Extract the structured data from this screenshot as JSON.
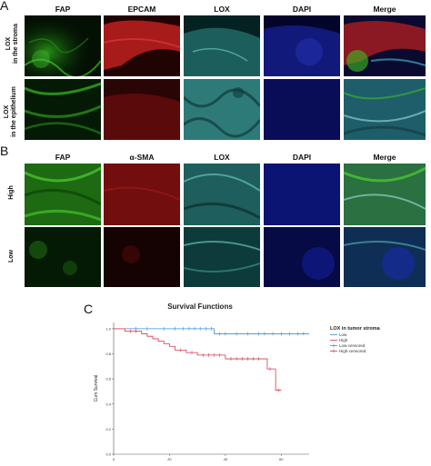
{
  "panel_a": {
    "letter": "A",
    "columns": [
      "FAP",
      "EPCAM",
      "LOX",
      "DAPI",
      "Merge"
    ],
    "rows": [
      {
        "line1": "LOX",
        "line2": "in the stroma"
      },
      {
        "line1": "LOX",
        "line2": "in the epithelium"
      }
    ]
  },
  "panel_b": {
    "letter": "B",
    "columns": [
      "FAP",
      "α-SMA",
      "LOX",
      "DAPI",
      "Merge"
    ],
    "rows": [
      {
        "line1": "High"
      },
      {
        "line1": "Low"
      }
    ]
  },
  "panel_c": {
    "letter": "C"
  },
  "colors": {
    "fap": "#2e8b1e",
    "epcam": "#b81818",
    "lox": "#3aa7a0",
    "dapi": "#1a24a0",
    "sma": "#8a1212",
    "low_line": "#3a8fd6",
    "high_line": "#d43a4a"
  },
  "chart_data": {
    "type": "line",
    "title": "Survival Functions",
    "xlabel": "",
    "ylabel": "Cum Survival",
    "xlim": [
      0,
      70
    ],
    "ylim": [
      0.0,
      1.05
    ],
    "xticks": [
      "0",
      "20",
      "40",
      "60"
    ],
    "xtick_values": [
      0,
      20,
      40,
      60
    ],
    "yticks": [
      "0.0",
      "0.2",
      "0.4",
      "0.6",
      "0.8",
      "1.0"
    ],
    "ytick_values": [
      0.0,
      0.2,
      0.4,
      0.6,
      0.8,
      1.0
    ],
    "legend_title": "LOX in tumor stroma",
    "legend": [
      "Low",
      "High",
      "Low-censored",
      "High-censored"
    ],
    "legend_position": "right",
    "series": [
      {
        "name": "Low",
        "steps": [
          [
            0,
            1.0
          ],
          [
            36,
            1.0
          ],
          [
            36,
            0.96
          ],
          [
            70,
            0.96
          ]
        ],
        "censored": [
          [
            8,
            1.0
          ],
          [
            12,
            1.0
          ],
          [
            18,
            1.0
          ],
          [
            22,
            1.0
          ],
          [
            25,
            1.0
          ],
          [
            27,
            1.0
          ],
          [
            29,
            1.0
          ],
          [
            31,
            1.0
          ],
          [
            33,
            1.0
          ],
          [
            35,
            1.0
          ],
          [
            38,
            0.96
          ],
          [
            40,
            0.96
          ],
          [
            44,
            0.96
          ],
          [
            48,
            0.96
          ],
          [
            52,
            0.96
          ],
          [
            54,
            0.96
          ],
          [
            57,
            0.96
          ],
          [
            60,
            0.96
          ],
          [
            63,
            0.96
          ],
          [
            66,
            0.96
          ],
          [
            68,
            0.96
          ]
        ]
      },
      {
        "name": "High",
        "steps": [
          [
            0,
            1.0
          ],
          [
            4,
            1.0
          ],
          [
            4,
            0.98
          ],
          [
            10,
            0.98
          ],
          [
            10,
            0.96
          ],
          [
            12,
            0.96
          ],
          [
            12,
            0.94
          ],
          [
            14,
            0.94
          ],
          [
            14,
            0.92
          ],
          [
            16,
            0.92
          ],
          [
            16,
            0.9
          ],
          [
            18,
            0.9
          ],
          [
            18,
            0.88
          ],
          [
            20,
            0.88
          ],
          [
            20,
            0.86
          ],
          [
            22,
            0.86
          ],
          [
            22,
            0.83
          ],
          [
            26,
            0.83
          ],
          [
            26,
            0.81
          ],
          [
            30,
            0.81
          ],
          [
            30,
            0.79
          ],
          [
            40,
            0.79
          ],
          [
            40,
            0.76
          ],
          [
            55,
            0.76
          ],
          [
            55,
            0.68
          ],
          [
            58,
            0.68
          ],
          [
            58,
            0.51
          ],
          [
            60,
            0.51
          ]
        ],
        "censored": [
          [
            6,
            0.98
          ],
          [
            8,
            0.98
          ],
          [
            24,
            0.83
          ],
          [
            28,
            0.81
          ],
          [
            32,
            0.79
          ],
          [
            34,
            0.79
          ],
          [
            36,
            0.79
          ],
          [
            38,
            0.79
          ],
          [
            42,
            0.76
          ],
          [
            44,
            0.76
          ],
          [
            46,
            0.76
          ],
          [
            48,
            0.76
          ],
          [
            50,
            0.76
          ],
          [
            52,
            0.76
          ],
          [
            56,
            0.68
          ],
          [
            59,
            0.51
          ]
        ]
      }
    ]
  }
}
